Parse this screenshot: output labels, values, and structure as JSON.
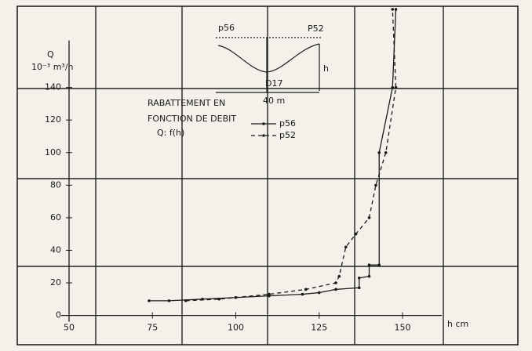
{
  "chart_data": {
    "type": "line",
    "y_label": "Q",
    "y_units": "10⁻³ m³/h",
    "x_label": "h cm",
    "annotations": [
      "RABATTEMENT EN",
      "FONCTION DE DEBIT",
      "Q: f(h)"
    ],
    "inset_labels": [
      "p56",
      "P52",
      "h",
      "D17",
      "40 m"
    ],
    "xlim": [
      34,
      185
    ],
    "ylim": [
      -18,
      189
    ],
    "xticks": [
      50,
      75,
      100,
      125,
      150
    ],
    "yticks": [
      0,
      20,
      40,
      60,
      80,
      100,
      120,
      140
    ],
    "series": [
      {
        "name": "p56",
        "color": "#1a1a1a",
        "dash": "none",
        "x": [
          74,
          80,
          90,
          100,
          110,
          120,
          125,
          130,
          137,
          137,
          140,
          140,
          143,
          143,
          147,
          148
        ],
        "values": [
          9,
          9,
          10,
          11,
          12,
          13,
          14,
          16,
          17,
          23,
          24,
          31,
          31,
          100,
          140,
          188
        ]
      },
      {
        "name": "p52",
        "color": "#1a1a1a",
        "dash": "5,4",
        "x": [
          85,
          95,
          110,
          121,
          130,
          131,
          133,
          136,
          140,
          142,
          145,
          148,
          147
        ],
        "values": [
          9,
          10,
          13,
          16,
          20,
          24,
          42,
          50,
          60,
          80,
          100,
          140,
          188
        ]
      }
    ]
  }
}
